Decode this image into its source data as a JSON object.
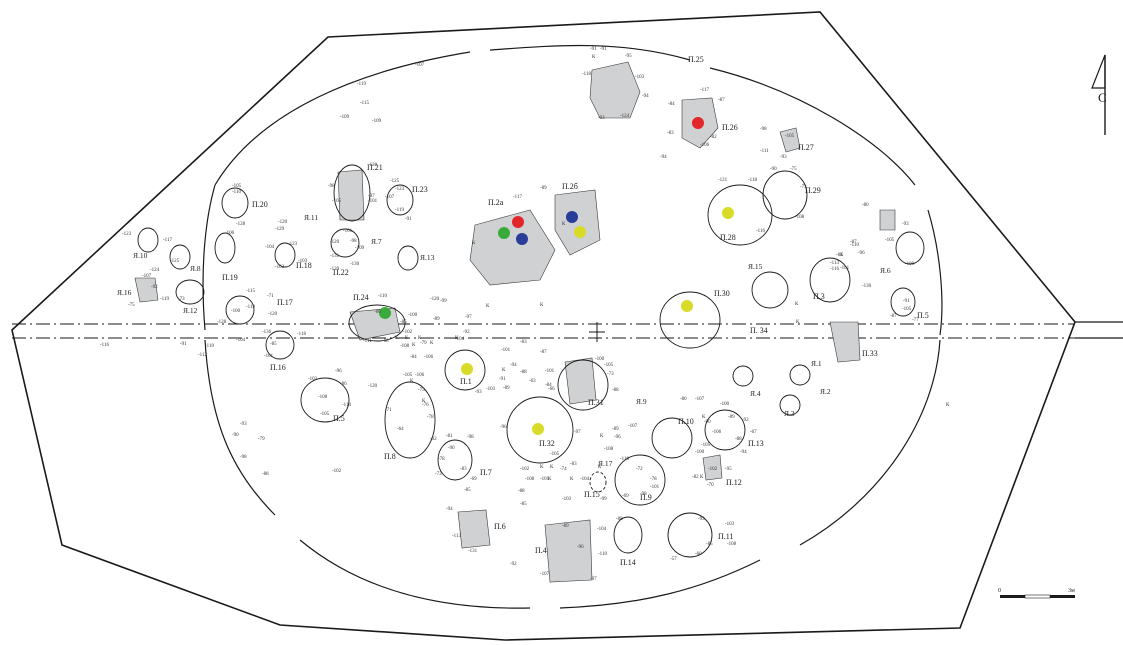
{
  "north": {
    "letter": "С"
  },
  "scale": {
    "start": "0",
    "end": "3м"
  },
  "colors": {
    "red": "#e3262a",
    "green": "#3aaa3a",
    "blue": "#2a3c9a",
    "yellow": "#d8dc28",
    "stone": "#cfd1d3",
    "find": "#b8622a"
  },
  "pits": [
    {
      "label": "П.25"
    },
    {
      "label": "П.26"
    },
    {
      "label": "П.27"
    },
    {
      "label": "П.29"
    },
    {
      "label": "П.21"
    },
    {
      "label": "П.23"
    },
    {
      "label": "П.20"
    },
    {
      "label": "П.2а"
    },
    {
      "label": "П.2б"
    },
    {
      "label": "П.28"
    },
    {
      "label": "П.22"
    },
    {
      "label": "П.18"
    },
    {
      "label": "П.19"
    },
    {
      "label": "П.17"
    },
    {
      "label": "П.24"
    },
    {
      "label": "П.30"
    },
    {
      "label": "П. 34"
    },
    {
      "label": "П.3"
    },
    {
      "label": "П.5"
    },
    {
      "label": "П.33"
    },
    {
      "label": "П.16"
    },
    {
      "label": "П.1"
    },
    {
      "label": "П.31"
    },
    {
      "label": "П.5"
    },
    {
      "label": "П.8"
    },
    {
      "label": "П.32"
    },
    {
      "label": "П.10"
    },
    {
      "label": "П.13"
    },
    {
      "label": "П.12"
    },
    {
      "label": "П.7"
    },
    {
      "label": "П.15"
    },
    {
      "label": "П.9"
    },
    {
      "label": "П.6"
    },
    {
      "label": "П.4"
    },
    {
      "label": "П.14"
    },
    {
      "label": "П.11"
    }
  ],
  "holes": [
    {
      "label": "Я.11"
    },
    {
      "label": "Я.7"
    },
    {
      "label": "Я.13"
    },
    {
      "label": "Я.10"
    },
    {
      "label": "Я.8"
    },
    {
      "label": "Я.16"
    },
    {
      "label": "Я.12"
    },
    {
      "label": "Я.15"
    },
    {
      "label": "Я.6"
    },
    {
      "label": "Я.1"
    },
    {
      "label": "Я.4"
    },
    {
      "label": "Я.2"
    },
    {
      "label": "Я.3"
    },
    {
      "label": "Я.9"
    },
    {
      "label": "Я.17"
    }
  ],
  "depths": [
    "-107",
    "-119",
    "-115",
    "-109",
    "-109",
    "-91",
    "-91",
    "-95",
    "-118",
    "-103",
    "-94",
    "-124",
    "-93",
    "-117",
    "-87",
    "-84",
    "-83",
    "-106",
    "-82",
    "-94",
    "-98",
    "-105",
    "-111",
    "-93",
    "-90",
    "-75",
    "-118",
    "-73",
    "-108",
    "-120",
    "-105",
    "-110",
    "-98",
    "-105",
    "-125",
    "-123",
    "-107",
    "-119",
    "-91",
    "-97",
    "-101",
    "-120",
    "-128",
    "-106",
    "-123",
    "-117",
    "-125",
    "-129",
    "-123",
    "-104",
    "-103",
    "-102",
    "-101",
    "-120",
    "-98",
    "-109",
    "-131",
    "-130",
    "-120",
    "-89",
    "-117",
    "-121",
    "-116",
    "-80",
    "-87",
    "-93",
    "-105",
    "-100",
    "-101",
    "-116",
    "-130",
    "-91",
    "-105",
    "-87",
    "-77",
    "-110",
    "-96",
    "-81",
    "-113",
    "-124",
    "-107",
    "-92",
    "-119",
    "-75",
    "-73",
    "-115",
    "-71",
    "-120",
    "-119",
    "-100",
    "-128",
    "-104",
    "-136",
    "-118",
    "-85",
    "-101",
    "-110",
    "-86",
    "-100",
    "-85",
    "-102",
    "-68",
    "-111",
    "-108",
    "-84",
    "-79",
    "-89",
    "-99",
    "-120",
    "-97",
    "-92",
    "-104",
    "-116",
    "-91",
    "-110",
    "-112",
    "-106",
    "-83",
    "-101",
    "-94",
    "-88",
    "-89",
    "-63",
    "-87",
    "-101",
    "-100",
    "-105",
    "-73",
    "-88",
    "-84",
    "-91",
    "-103",
    "-93",
    "-103",
    "-96",
    "-86",
    "-108",
    "-114",
    "-105",
    "-120",
    "-105",
    "-106",
    "-75",
    "-76",
    "-78",
    "-71",
    "-64",
    "-92",
    "-81",
    "-98",
    "-90",
    "-78",
    "-73",
    "-83",
    "-69",
    "-85",
    "-96",
    "-66",
    "-97",
    "-105",
    "-74",
    "-83",
    "-102",
    "-108",
    "-88",
    "-85",
    "-101",
    "-103",
    "-104",
    "-89",
    "-107",
    "-96",
    "-108",
    "-110",
    "-72",
    "-78",
    "-101",
    "-98",
    "-99",
    "-88",
    "-69",
    "-80",
    "-107",
    "-100",
    "-89",
    "-90",
    "-106",
    "-105",
    "-100",
    "-102",
    "-70",
    "-82",
    "-94",
    "-92",
    "-67",
    "-88",
    "-95",
    "-93",
    "-103",
    "-108",
    "-85",
    "-60",
    "-57",
    "-89",
    "-104",
    "-110",
    "-97",
    "-96",
    "-107",
    "-92",
    "-94",
    "-113",
    "-131",
    "-93",
    "-90",
    "-79",
    "-98",
    "-88",
    "-102"
  ],
  "k_marks": [
    "К",
    "К",
    "К",
    "К",
    "К",
    "К",
    "К",
    "К",
    "К",
    "К",
    "К",
    "К",
    "К",
    "К",
    "К",
    "К",
    "К",
    "К",
    "К",
    "К",
    "К",
    "К",
    "К",
    "К",
    "К",
    "К"
  ]
}
